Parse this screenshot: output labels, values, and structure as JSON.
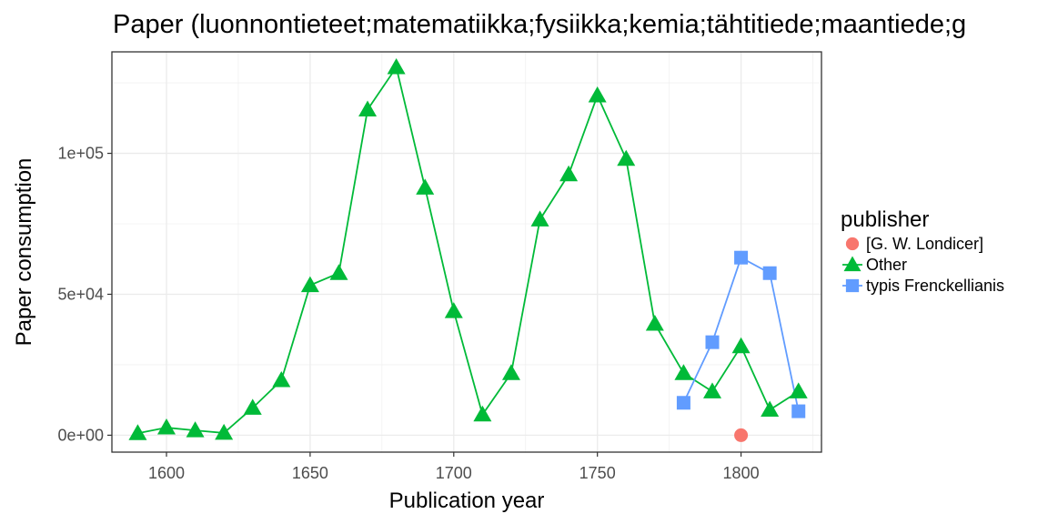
{
  "chart_data": {
    "type": "line",
    "title": "Paper (luonnontieteet;matematiikka;fysiikka;kemia;tähtitiede;maantiede;g",
    "xlabel": "Publication year",
    "ylabel": "Paper consumption",
    "xlim": [
      1581,
      1828
    ],
    "ylim": [
      -6000,
      136000
    ],
    "x_ticks": [
      1600,
      1650,
      1700,
      1750,
      1800
    ],
    "x_tick_labels": [
      "1600",
      "1650",
      "1700",
      "1750",
      "1800"
    ],
    "y_ticks": [
      0,
      50000,
      100000
    ],
    "y_tick_labels": [
      "0e+00",
      "5e+04",
      "1e+05"
    ],
    "grid": true,
    "legend": {
      "title": "publisher",
      "position": "right"
    },
    "series": [
      {
        "name": "[G. W. Londicer]",
        "color": "#F8766D",
        "marker": "circle",
        "x": [
          1800
        ],
        "y": [
          0
        ]
      },
      {
        "name": "Other",
        "color": "#00BA38",
        "marker": "triangle",
        "x": [
          1590,
          1600,
          1610,
          1620,
          1630,
          1640,
          1650,
          1660,
          1670,
          1680,
          1690,
          1700,
          1710,
          1720,
          1730,
          1740,
          1750,
          1760,
          1770,
          1780,
          1790,
          1800,
          1810,
          1820
        ],
        "y": [
          700,
          2700,
          1700,
          800,
          9700,
          19500,
          53200,
          57500,
          115500,
          130500,
          87800,
          44000,
          7300,
          22000,
          76500,
          92500,
          120500,
          98000,
          39500,
          22000,
          15500,
          31500,
          9000,
          15500
        ]
      },
      {
        "name": "typis Frenckellianis",
        "color": "#619CFF",
        "marker": "square",
        "x": [
          1780,
          1790,
          1800,
          1810,
          1820
        ],
        "y": [
          11500,
          33000,
          63000,
          57500,
          8500
        ]
      }
    ]
  }
}
